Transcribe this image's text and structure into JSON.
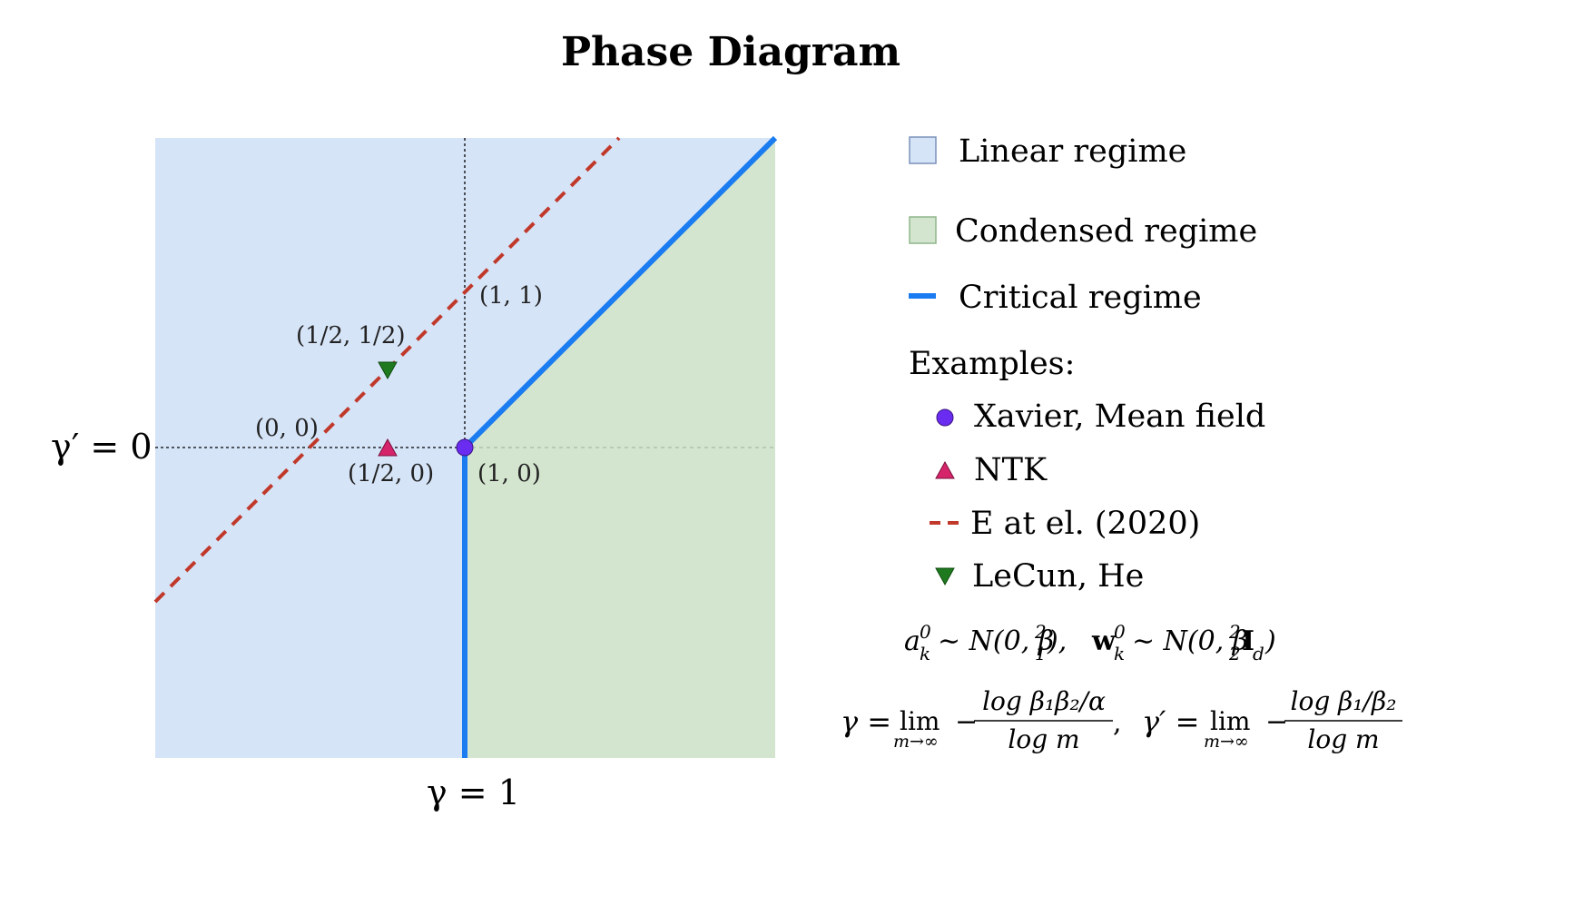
{
  "title": "Phase Diagram",
  "colors": {
    "linear_fill": "#d6e4f8",
    "condensed_fill": "#d3e5cf",
    "critical_line": "#1a7cf0",
    "e_et_al_line": "#c0392b",
    "xavier_marker": "#6a2cf0",
    "ntk_marker": "#d6246b",
    "lecun_marker": "#1f7a1f"
  },
  "axes": {
    "x_label": "γ = 1",
    "y_label": "γ′ = 0"
  },
  "points": {
    "p11": "(1, 1)",
    "p_half_half": "(1/2, 1/2)",
    "p00": "(0, 0)",
    "p_half_0": "(1/2, 0)",
    "p10": "(1, 0)"
  },
  "legend": {
    "linear": "Linear regime",
    "condensed": "Condensed regime",
    "critical": "Critical regime",
    "examples_heading": "Examples:",
    "xavier": "Xavier, Mean field",
    "ntk": "NTK",
    "e_et_al": "E at el. (2020)",
    "lecun": "LeCun, He"
  },
  "formulas": {
    "init_a": "a",
    "init_a_dist": "∼ N(0, β",
    "init_a_close": "),",
    "init_w": "w",
    "init_w_dist": "∼ N(0, β",
    "init_w_close": "I",
    "init_w_end": ")",
    "gamma_lhs": "γ =",
    "lim": "lim",
    "lim_sub": "m→∞",
    "gamma_num": "log β₁β₂/α",
    "gamma_den": "log m",
    "gamma_prime_lhs": "γ′ =",
    "gamma_prime_num": "log β₁/β₂",
    "gamma_prime_den": "log m",
    "minus": "−",
    "comma": ","
  }
}
